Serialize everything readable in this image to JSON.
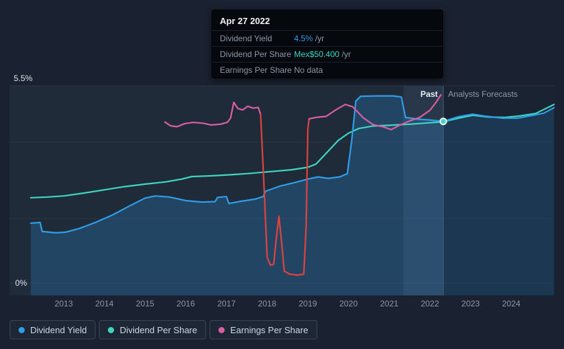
{
  "tooltip": {
    "date": "Apr 27 2022",
    "rows": [
      {
        "label": "Dividend Yield",
        "value": "4.5%",
        "suffix": " /yr",
        "color": "#2f9de8"
      },
      {
        "label": "Dividend Per Share",
        "value": "Mex$50.400",
        "suffix": " /yr",
        "color": "#3fd5c2"
      },
      {
        "label": "Earnings Per Share",
        "value": "No data",
        "suffix": "",
        "color": "#8d99a8"
      }
    ]
  },
  "axis": {
    "y_top": "5.5%",
    "y_bottom": "0%",
    "years": [
      "2013",
      "2014",
      "2015",
      "2016",
      "2017",
      "2018",
      "2019",
      "2020",
      "2021",
      "2022",
      "2023",
      "2024"
    ]
  },
  "labels": {
    "past": "Past",
    "forecast": "Analysts Forecasts"
  },
  "legend": [
    {
      "label": "Dividend Yield",
      "color": "#2f9de8"
    },
    {
      "label": "Dividend Per Share",
      "color": "#3fd5c2"
    },
    {
      "label": "Earnings Per Share",
      "color": "#d95fa2"
    }
  ],
  "chart_data": {
    "type": "line",
    "value_scale": "shared visual axis 0-5.5",
    "x_domain": [
      2011.67,
      2025.06
    ],
    "y_range": [
      0,
      5.5
    ],
    "gridlines_y": [
      5.5,
      3.93,
      1.8,
      0
    ],
    "divider_x": 2022.33,
    "highlight_band": [
      2021.35,
      2022.33
    ],
    "marker": {
      "x": 2022.33,
      "y": 4.51,
      "color": "#3fd5c2"
    },
    "colors": {
      "plot_bg": "#202b3a",
      "gridline": "#2b3646",
      "divider": "#4d5d72",
      "band": "rgba(125,170,220,0.10)",
      "forecast_shade": "rgba(6,10,16,0.22)"
    },
    "series": [
      {
        "name": "Dividend Yield",
        "unit": "%",
        "color": "#2f9de8",
        "fill": "rgba(43,125,190,0.32)",
        "points": [
          [
            2012.19,
            1.67
          ],
          [
            2012.42,
            1.69
          ],
          [
            2012.47,
            1.44
          ],
          [
            2012.8,
            1.4
          ],
          [
            2013.05,
            1.42
          ],
          [
            2013.4,
            1.53
          ],
          [
            2013.8,
            1.7
          ],
          [
            2014.2,
            1.9
          ],
          [
            2014.6,
            2.14
          ],
          [
            2015.0,
            2.37
          ],
          [
            2015.25,
            2.43
          ],
          [
            2015.6,
            2.4
          ],
          [
            2016.0,
            2.3
          ],
          [
            2016.4,
            2.26
          ],
          [
            2016.72,
            2.27
          ],
          [
            2016.78,
            2.39
          ],
          [
            2017.0,
            2.41
          ],
          [
            2017.06,
            2.22
          ],
          [
            2017.35,
            2.28
          ],
          [
            2017.7,
            2.34
          ],
          [
            2017.9,
            2.41
          ],
          [
            2017.96,
            2.56
          ],
          [
            2018.3,
            2.7
          ],
          [
            2018.7,
            2.81
          ],
          [
            2019.0,
            2.9
          ],
          [
            2019.25,
            2.96
          ],
          [
            2019.5,
            2.92
          ],
          [
            2019.78,
            2.96
          ],
          [
            2019.97,
            3.05
          ],
          [
            2020.08,
            4.0
          ],
          [
            2020.18,
            5.08
          ],
          [
            2020.3,
            5.21
          ],
          [
            2020.7,
            5.22
          ],
          [
            2021.1,
            5.22
          ],
          [
            2021.3,
            5.19
          ],
          [
            2021.4,
            4.62
          ],
          [
            2021.7,
            4.57
          ],
          [
            2022.0,
            4.55
          ],
          [
            2022.33,
            4.51
          ],
          [
            2022.7,
            4.64
          ],
          [
            2023.05,
            4.71
          ],
          [
            2023.4,
            4.65
          ],
          [
            2023.8,
            4.6
          ],
          [
            2024.15,
            4.6
          ],
          [
            2024.5,
            4.67
          ],
          [
            2024.8,
            4.74
          ],
          [
            2025.05,
            4.89
          ]
        ]
      },
      {
        "name": "Dividend Per Share",
        "unit": "Mex$",
        "color": "#3fd5c2",
        "points": [
          [
            2012.19,
            2.38
          ],
          [
            2012.6,
            2.4
          ],
          [
            2013.0,
            2.43
          ],
          [
            2013.5,
            2.51
          ],
          [
            2014.0,
            2.6
          ],
          [
            2014.5,
            2.69
          ],
          [
            2015.0,
            2.76
          ],
          [
            2015.5,
            2.82
          ],
          [
            2015.9,
            2.9
          ],
          [
            2016.15,
            2.97
          ],
          [
            2016.6,
            2.99
          ],
          [
            2017.1,
            3.02
          ],
          [
            2017.6,
            3.06
          ],
          [
            2018.1,
            3.11
          ],
          [
            2018.6,
            3.16
          ],
          [
            2019.0,
            3.23
          ],
          [
            2019.2,
            3.32
          ],
          [
            2019.45,
            3.62
          ],
          [
            2019.75,
            3.98
          ],
          [
            2020.0,
            4.18
          ],
          [
            2020.25,
            4.31
          ],
          [
            2020.6,
            4.38
          ],
          [
            2021.0,
            4.4
          ],
          [
            2021.5,
            4.43
          ],
          [
            2022.0,
            4.47
          ],
          [
            2022.33,
            4.5
          ],
          [
            2022.7,
            4.6
          ],
          [
            2023.05,
            4.68
          ],
          [
            2023.45,
            4.63
          ],
          [
            2023.85,
            4.62
          ],
          [
            2024.2,
            4.66
          ],
          [
            2024.6,
            4.73
          ],
          [
            2025.05,
            4.98
          ]
        ]
      },
      {
        "name": "Earnings Per Share",
        "unit": "Mex$",
        "color": "#d95fa2",
        "negative_color": "#e0433f",
        "segments": [
          {
            "color": "#d95fa2",
            "points": [
              [
                2015.49,
                4.49
              ],
              [
                2015.62,
                4.39
              ],
              [
                2015.78,
                4.36
              ],
              [
                2015.98,
                4.45
              ],
              [
                2016.18,
                4.48
              ],
              [
                2016.42,
                4.46
              ],
              [
                2016.62,
                4.41
              ],
              [
                2016.85,
                4.43
              ],
              [
                2017.02,
                4.48
              ],
              [
                2017.1,
                4.6
              ],
              [
                2017.18,
                5.04
              ],
              [
                2017.28,
                4.87
              ],
              [
                2017.4,
                4.83
              ],
              [
                2017.52,
                4.93
              ],
              [
                2017.66,
                4.88
              ],
              [
                2017.78,
                4.9
              ],
              [
                2017.84,
                4.7
              ]
            ]
          },
          {
            "color": "#e0433f",
            "points": [
              [
                2017.84,
                4.7
              ],
              [
                2017.92,
                2.8
              ],
              [
                2018.0,
                0.72
              ],
              [
                2018.08,
                0.5
              ],
              [
                2018.16,
                0.52
              ],
              [
                2018.24,
                1.4
              ],
              [
                2018.29,
                1.86
              ],
              [
                2018.35,
                1.2
              ],
              [
                2018.42,
                0.33
              ],
              [
                2018.56,
                0.25
              ],
              [
                2018.74,
                0.22
              ],
              [
                2018.9,
                0.25
              ],
              [
                2018.96,
                1.6
              ],
              [
                2019.0,
                4.3
              ],
              [
                2019.03,
                4.58
              ]
            ]
          },
          {
            "color": "#d95fa2",
            "points": [
              [
                2019.03,
                4.58
              ],
              [
                2019.2,
                4.62
              ],
              [
                2019.45,
                4.65
              ],
              [
                2019.7,
                4.84
              ],
              [
                2019.92,
                4.98
              ],
              [
                2020.1,
                4.92
              ],
              [
                2020.35,
                4.62
              ],
              [
                2020.6,
                4.42
              ],
              [
                2020.85,
                4.36
              ],
              [
                2021.05,
                4.28
              ],
              [
                2021.25,
                4.4
              ],
              [
                2021.5,
                4.52
              ],
              [
                2021.75,
                4.62
              ],
              [
                2022.0,
                4.82
              ],
              [
                2022.15,
                5.04
              ],
              [
                2022.27,
                5.25
              ]
            ]
          }
        ]
      }
    ]
  }
}
